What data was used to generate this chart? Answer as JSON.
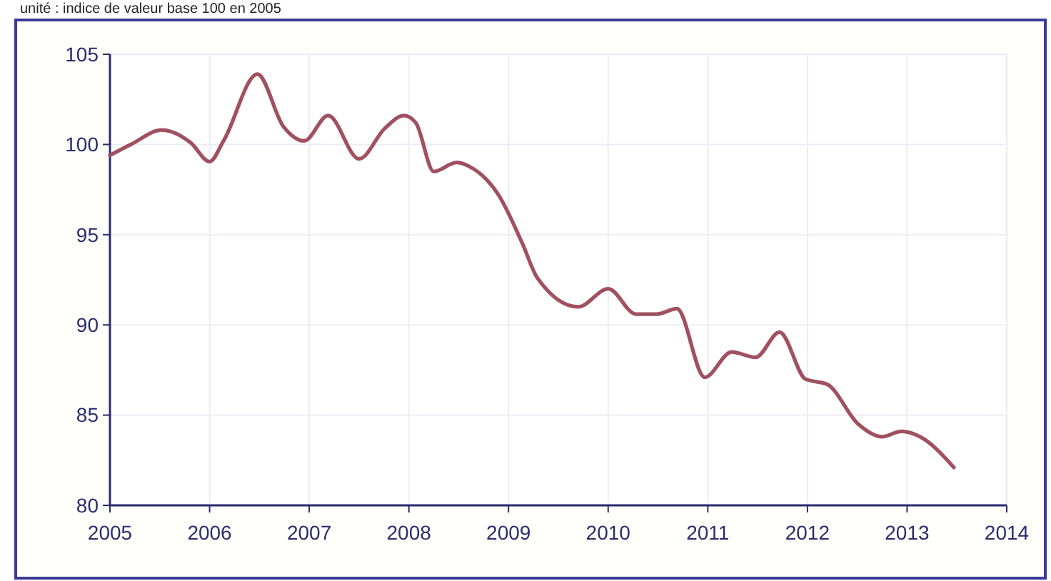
{
  "chart_data": {
    "type": "line",
    "subtitle": "unité : indice de valeur base 100 en 2005",
    "x": [
      2005.0,
      2005.21,
      2005.52,
      2005.81,
      2006.0,
      2006.14,
      2006.48,
      2006.74,
      2006.95,
      2007.19,
      2007.5,
      2007.76,
      2007.95,
      2008.07,
      2008.25,
      2008.48,
      2008.6,
      2008.9,
      2009.14,
      2009.29,
      2009.7,
      2010.0,
      2010.28,
      2010.49,
      2010.69,
      2010.97,
      2011.24,
      2011.48,
      2011.72,
      2011.98,
      2012.2,
      2012.51,
      2012.75,
      2012.94,
      2013.13,
      2013.47
    ],
    "series": [
      {
        "color": "#a0505f",
        "values": [
          99.4,
          100.0,
          100.8,
          100.1,
          99.05,
          100.2,
          103.9,
          101.0,
          100.2,
          101.6,
          99.2,
          100.9,
          101.6,
          101.2,
          98.5,
          99.0,
          98.8,
          97.2,
          94.5,
          92.6,
          91.0,
          92.0,
          90.6,
          90.6,
          90.9,
          87.1,
          88.5,
          88.2,
          89.6,
          87.0,
          86.7,
          84.5,
          83.8,
          84.1,
          83.8,
          82.1
        ]
      }
    ],
    "xlim": [
      2005,
      2014
    ],
    "xticks": [
      2005,
      2006,
      2007,
      2008,
      2009,
      2010,
      2011,
      2012,
      2013,
      2014
    ],
    "ylim": [
      80,
      105
    ],
    "yticks": [
      80,
      85,
      90,
      95,
      100,
      105
    ],
    "grid": true,
    "marker": "none",
    "line_style": "solid"
  }
}
